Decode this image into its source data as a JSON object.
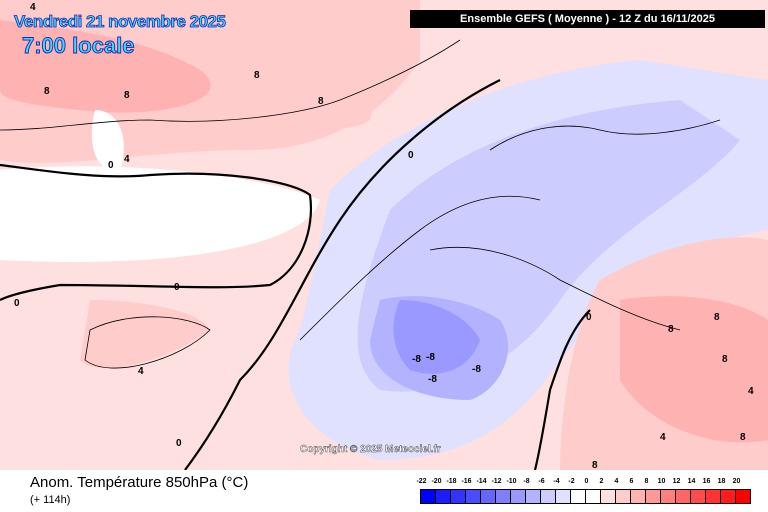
{
  "header": {
    "date": "Vendredi 21 novembre 2025",
    "time": "7:00 locale",
    "model": "Ensemble GEFS  ( Moyenne )  -  12 Z du 16/11/2025"
  },
  "copyright": "Copyright © 2025 Meteociel.fr",
  "footer": {
    "title": "Anom. Température 850hPa (°C)",
    "subtitle": "(+ 114h)"
  },
  "legend": {
    "labels": [
      "-22",
      "-20",
      "-18",
      "-16",
      "-14",
      "-12",
      "-10",
      "-8",
      "-6",
      "-4",
      "-2",
      "0",
      "2",
      "4",
      "6",
      "8",
      "10",
      "12",
      "14",
      "16",
      "18",
      "20"
    ],
    "colors": [
      "#0000ff",
      "#1c1cff",
      "#3333ff",
      "#4b4bff",
      "#6666ff",
      "#7f7fff",
      "#9999ff",
      "#b2b2ff",
      "#ccccff",
      "#e0e0ff",
      "#ffffff",
      "#ffffff",
      "#ffe0e0",
      "#ffcccc",
      "#ffb2b2",
      "#ff9999",
      "#ff7f7f",
      "#ff6666",
      "#ff4b4b",
      "#ff3333",
      "#ff1c1c",
      "#ff0000"
    ]
  },
  "contour_labels": [
    "4",
    "8",
    "8",
    "8",
    "8",
    "0",
    "4",
    "0",
    "0",
    "0",
    "4",
    "0",
    "-8",
    "-8",
    "-8",
    "-8",
    "8",
    "8",
    "8",
    "8",
    "4",
    "4",
    "8",
    "0"
  ]
}
